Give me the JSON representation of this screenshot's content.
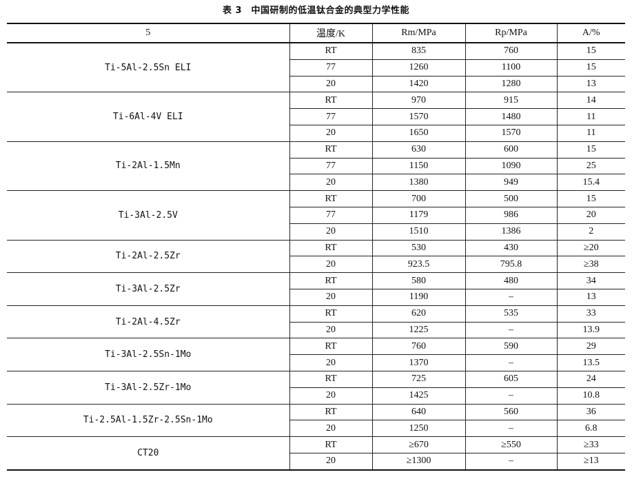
{
  "caption": "表 3　中国研制的低温钛合金的典型力学性能",
  "table": {
    "headers": [
      "5",
      "温度/K",
      "Rm/MPa",
      "Rp/MPa",
      "A/%"
    ],
    "groups": [
      {
        "alloy": "Ti-5Al-2.5Sn ELI",
        "rows": [
          [
            "RT",
            "835",
            "760",
            "15"
          ],
          [
            "77",
            "1260",
            "1100",
            "15"
          ],
          [
            "20",
            "1420",
            "1280",
            "13"
          ]
        ]
      },
      {
        "alloy": "Ti-6Al-4V ELI",
        "rows": [
          [
            "RT",
            "970",
            "915",
            "14"
          ],
          [
            "77",
            "1570",
            "1480",
            "11"
          ],
          [
            "20",
            "1650",
            "1570",
            "11"
          ]
        ]
      },
      {
        "alloy": "Ti-2Al-1.5Mn",
        "rows": [
          [
            "RT",
            "630",
            "600",
            "15"
          ],
          [
            "77",
            "1150",
            "1090",
            "25"
          ],
          [
            "20",
            "1380",
            "949",
            "15.4"
          ]
        ]
      },
      {
        "alloy": "Ti-3Al-2.5V",
        "rows": [
          [
            "RT",
            "700",
            "500",
            "15"
          ],
          [
            "77",
            "1179",
            "986",
            "20"
          ],
          [
            "20",
            "1510",
            "1386",
            "2"
          ]
        ]
      },
      {
        "alloy": "Ti-2Al-2.5Zr",
        "rows": [
          [
            "RT",
            "530",
            "430",
            "≥20"
          ],
          [
            "20",
            "923.5",
            "795.8",
            "≥38"
          ]
        ]
      },
      {
        "alloy": "Ti-3Al-2.5Zr",
        "rows": [
          [
            "RT",
            "580",
            "480",
            "34"
          ],
          [
            "20",
            "1190",
            "–",
            "13"
          ]
        ]
      },
      {
        "alloy": "Ti-2Al-4.5Zr",
        "rows": [
          [
            "RT",
            "620",
            "535",
            "33"
          ],
          [
            "20",
            "1225",
            "–",
            "13.9"
          ]
        ]
      },
      {
        "alloy": "Ti-3Al-2.5Sn-1Mo",
        "rows": [
          [
            "RT",
            "760",
            "590",
            "29"
          ],
          [
            "20",
            "1370",
            "–",
            "13.5"
          ]
        ]
      },
      {
        "alloy": "Ti-3Al-2.5Zr-1Mo",
        "rows": [
          [
            "RT",
            "725",
            "605",
            "24"
          ],
          [
            "20",
            "1425",
            "–",
            "10.8"
          ]
        ]
      },
      {
        "alloy": "Ti-2.5Al-1.5Zr-2.5Sn-1Mo",
        "rows": [
          [
            "RT",
            "640",
            "560",
            "36"
          ],
          [
            "20",
            "1250",
            "–",
            "6.8"
          ]
        ]
      },
      {
        "alloy": "CT20",
        "rows": [
          [
            "RT",
            "≥670",
            "≥550",
            "≥33"
          ],
          [
            "20",
            "≥1300",
            "–",
            "≥13"
          ]
        ]
      }
    ]
  }
}
